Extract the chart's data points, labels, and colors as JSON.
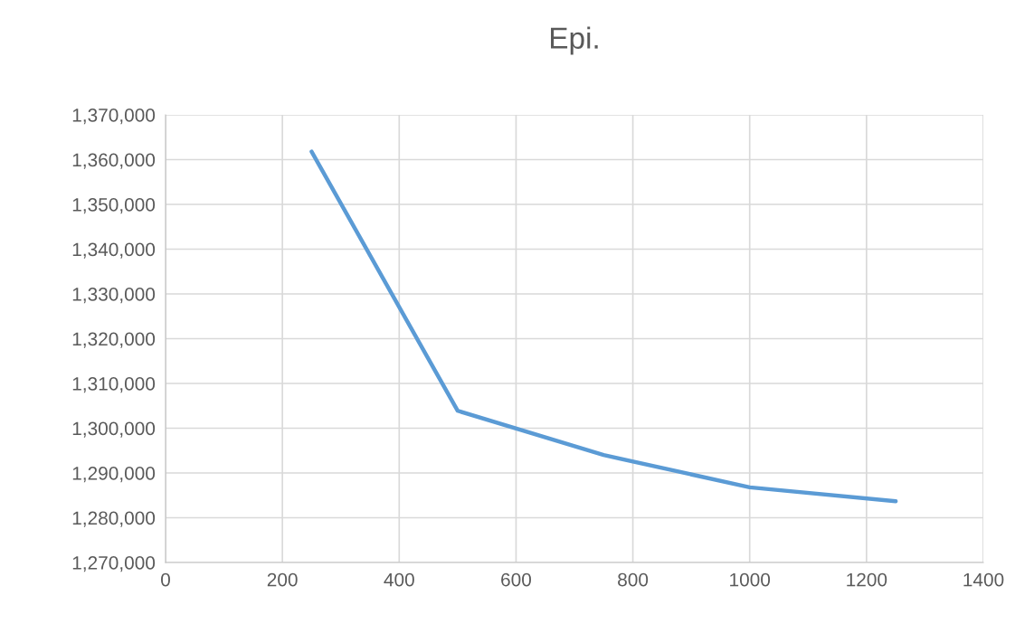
{
  "chart_data": {
    "type": "line",
    "title": "Epi.",
    "x": [
      250,
      500,
      750,
      1000,
      1250
    ],
    "series": [
      {
        "color": "#5b9bd5",
        "values": [
          1361800,
          1303900,
          1294000,
          1286800,
          1283700
        ]
      }
    ],
    "xlim": [
      0,
      1400
    ],
    "xticks": [
      0,
      200,
      400,
      600,
      800,
      1000,
      1200,
      1400
    ],
    "ylim": [
      1270000,
      1370000
    ],
    "yticks": [
      {
        "value": 1270000,
        "label": "1,270,000"
      },
      {
        "value": 1280000,
        "label": "1,280,000"
      },
      {
        "value": 1290000,
        "label": "1,290,000"
      },
      {
        "value": 1300000,
        "label": "1,300,000"
      },
      {
        "value": 1310000,
        "label": "1,310,000"
      },
      {
        "value": 1320000,
        "label": "1,320,000"
      },
      {
        "value": 1330000,
        "label": "1,330,000"
      },
      {
        "value": 1340000,
        "label": "1,340,000"
      },
      {
        "value": 1350000,
        "label": "1,350,000"
      },
      {
        "value": 1360000,
        "label": "1,360,000"
      },
      {
        "value": 1370000,
        "label": "1,370,000"
      }
    ],
    "grid": true,
    "marker": "none",
    "line_style": "solid"
  }
}
